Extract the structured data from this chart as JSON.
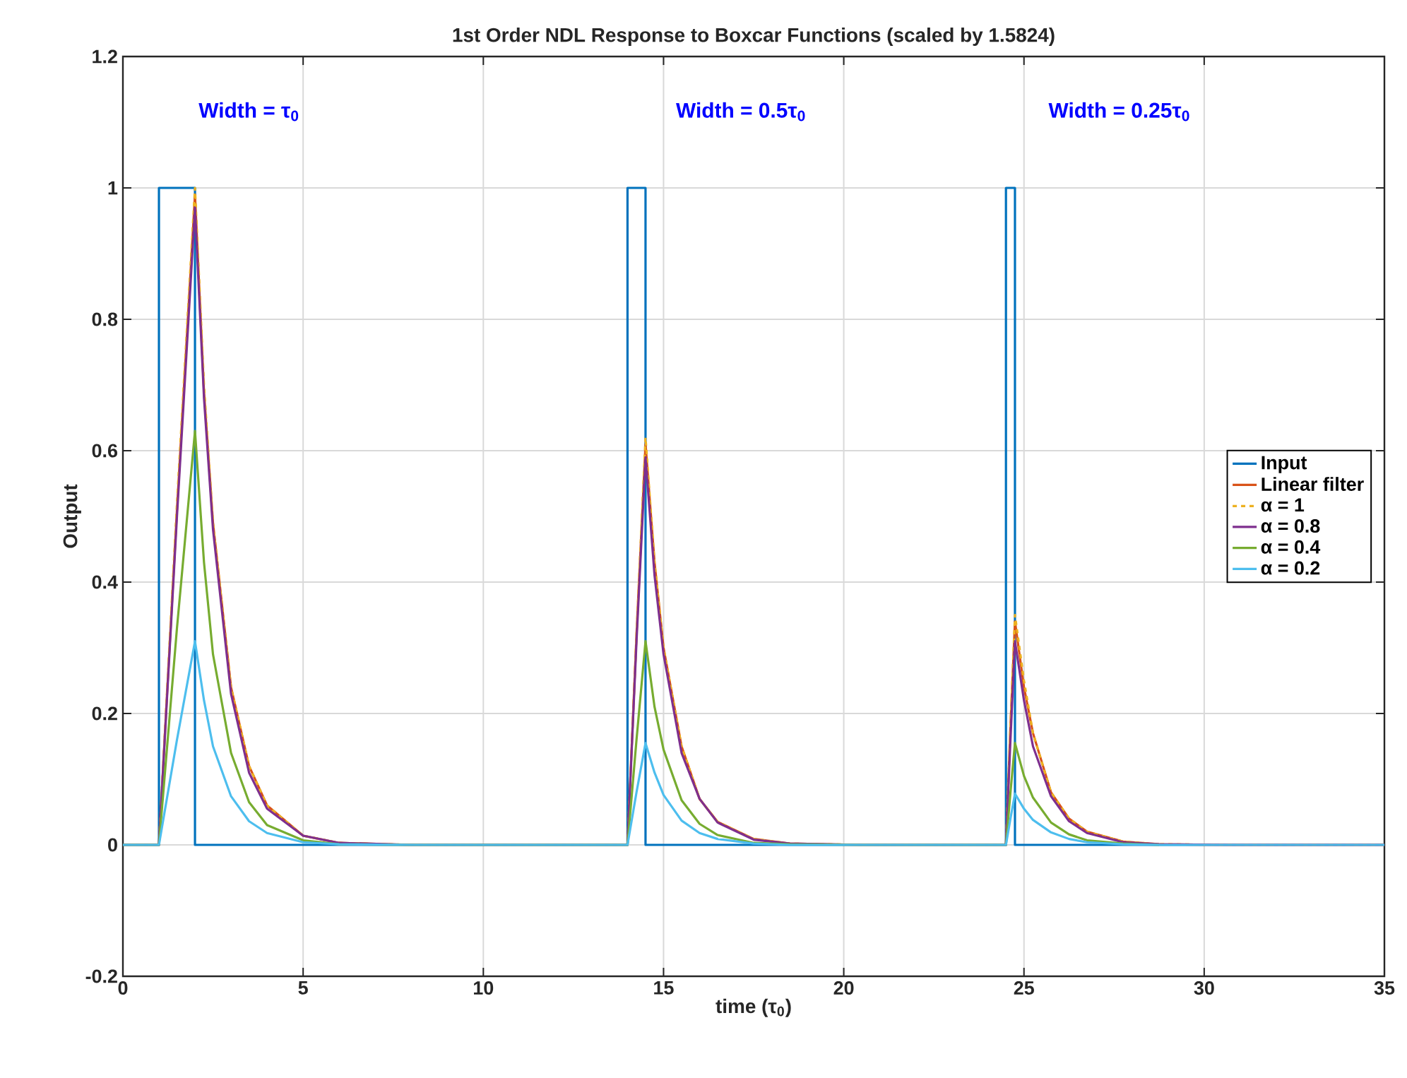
{
  "chart_data": {
    "type": "line",
    "title": "1st Order NDL Response to Boxcar Functions (scaled by 1.5824)",
    "xlabel": "time (τ$_{0}$)",
    "ylabel": "Output",
    "xlim": [
      0,
      35
    ],
    "ylim": [
      -0.2,
      1.2
    ],
    "xticks": [
      0,
      5,
      10,
      15,
      20,
      25,
      30,
      35
    ],
    "yticks": [
      -0.2,
      0,
      0.2,
      0.4,
      0.6,
      0.8,
      1,
      1.2
    ],
    "grid": true,
    "legend": "right",
    "marker": "none",
    "annotations": [
      "Width = τ$_{0}$",
      "Width = 0.5τ$_{0}$",
      "Width = 0.25τ$_{0}$"
    ],
    "series": [
      {
        "name": "Input",
        "color": "#0072bd",
        "line_style": "solid",
        "x": [
          0,
          1,
          1,
          2,
          2,
          14,
          14,
          14.5,
          14.5,
          24.5,
          24.5,
          24.75,
          24.75,
          35
        ],
        "values": [
          0,
          0,
          1,
          1,
          0,
          0,
          1,
          1,
          0,
          0,
          1,
          1,
          0,
          0
        ]
      },
      {
        "name": "Linear filter",
        "color": "#d95319",
        "line_style": "solid",
        "values": [
          0,
          0,
          0.51,
          0.99,
          0.69,
          0.49,
          0.24,
          0.12,
          0.06,
          0.014,
          0.003,
          0,
          0,
          0.32,
          0.61,
          0.43,
          0.3,
          0.15,
          0.07,
          0.035,
          0.009,
          0.002,
          0,
          0,
          0.18,
          0.34,
          0.24,
          0.17,
          0.08,
          0.04,
          0.02,
          0.005,
          0.001,
          0,
          0
        ]
      },
      {
        "name": "α = 1",
        "color": "#edb120",
        "line_style": "dashed",
        "values": [
          0,
          0,
          0.52,
          1.0,
          0.7,
          0.49,
          0.24,
          0.12,
          0.06,
          0.014,
          0.003,
          0,
          0,
          0.32,
          0.62,
          0.43,
          0.3,
          0.15,
          0.07,
          0.035,
          0.009,
          0.002,
          0,
          0,
          0.18,
          0.35,
          0.25,
          0.17,
          0.08,
          0.04,
          0.02,
          0.005,
          0.001,
          0,
          0
        ]
      },
      {
        "name": "α = 0.8",
        "color": "#7e2f8e",
        "line_style": "solid",
        "values": [
          0,
          0,
          0.5,
          0.97,
          0.68,
          0.48,
          0.23,
          0.11,
          0.055,
          0.014,
          0.003,
          0,
          0,
          0.31,
          0.59,
          0.41,
          0.29,
          0.14,
          0.07,
          0.034,
          0.008,
          0.002,
          0,
          0,
          0.16,
          0.31,
          0.22,
          0.15,
          0.074,
          0.036,
          0.018,
          0.004,
          0.001,
          0,
          0
        ]
      },
      {
        "name": "α = 0.4",
        "color": "#77ac30",
        "line_style": "solid",
        "values": [
          0,
          0,
          0.33,
          0.63,
          0.43,
          0.29,
          0.14,
          0.065,
          0.03,
          0.007,
          0.001,
          0,
          0,
          0.16,
          0.31,
          0.21,
          0.145,
          0.068,
          0.032,
          0.015,
          0.003,
          0.001,
          0,
          0,
          0.08,
          0.155,
          0.105,
          0.072,
          0.034,
          0.016,
          0.007,
          0.002,
          0,
          null,
          null
        ]
      },
      {
        "name": "α = 0.2",
        "color": "#4dbeee",
        "line_style": "solid",
        "values": [
          0,
          0,
          0.16,
          0.31,
          0.22,
          0.15,
          0.074,
          0.036,
          0.018,
          0.004,
          0.001,
          0,
          0,
          0.08,
          0.155,
          0.11,
          0.076,
          0.037,
          0.018,
          0.009,
          0.002,
          0,
          0,
          0,
          0.04,
          0.078,
          0.055,
          0.038,
          0.019,
          0.009,
          0.004,
          0.001,
          0,
          0,
          0
        ]
      }
    ],
    "x": [
      0,
      1,
      1.5,
      2,
      2.25,
      2.5,
      3,
      3.5,
      4,
      5,
      6,
      8,
      14,
      14.25,
      14.5,
      14.75,
      15,
      15.5,
      16,
      16.5,
      17.5,
      18.5,
      20.5,
      24.5,
      24.625,
      24.75,
      25,
      25.25,
      25.75,
      26.25,
      26.75,
      27.75,
      28.75,
      30.75,
      35
    ]
  }
}
